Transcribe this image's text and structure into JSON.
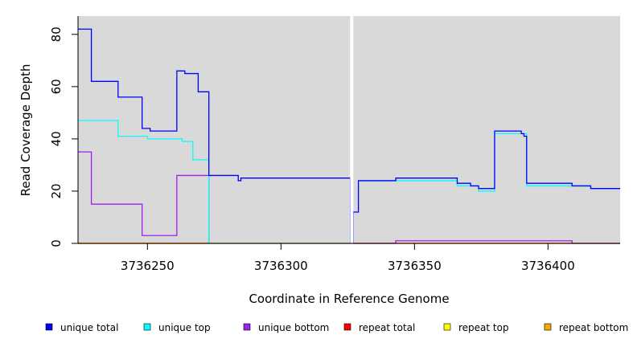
{
  "chart_data": {
    "type": "line",
    "step": true,
    "xlabel": "Coordinate in Reference Genome",
    "ylabel": "Read Coverage Depth",
    "xlim": [
      3736224,
      3736427
    ],
    "ylim": [
      0,
      87
    ],
    "x_ticks": [
      3736250,
      3736300,
      3736350,
      3736400
    ],
    "y_ticks": [
      0,
      20,
      40,
      60,
      80
    ],
    "background": "#d9d9d9",
    "separator_x": 3736326.5,
    "legend_position": "bottom",
    "series": [
      {
        "name": "unique total",
        "color": "#0000ff",
        "segments": [
          [
            [
              3736224,
              82
            ],
            [
              3736229,
              82
            ],
            [
              3736229,
              62
            ],
            [
              3736239,
              62
            ],
            [
              3736239,
              56
            ],
            [
              3736248,
              56
            ],
            [
              3736248,
              44
            ],
            [
              3736251,
              44
            ],
            [
              3736251,
              43
            ],
            [
              3736261,
              43
            ],
            [
              3736261,
              66
            ],
            [
              3736264,
              66
            ],
            [
              3736264,
              65
            ],
            [
              3736269,
              65
            ],
            [
              3736269,
              58
            ],
            [
              3736273,
              58
            ],
            [
              3736273,
              26
            ],
            [
              3736284,
              26
            ],
            [
              3736284,
              24
            ],
            [
              3736285,
              24
            ],
            [
              3736285,
              25
            ],
            [
              3736326,
              25
            ],
            [
              3736326,
              0
            ]
          ],
          [
            [
              3736327,
              0
            ],
            [
              3736327,
              12
            ],
            [
              3736329,
              12
            ],
            [
              3736329,
              24
            ],
            [
              3736343,
              24
            ],
            [
              3736343,
              25
            ],
            [
              3736366,
              25
            ],
            [
              3736366,
              23
            ],
            [
              3736371,
              23
            ],
            [
              3736371,
              22
            ],
            [
              3736374,
              22
            ],
            [
              3736374,
              21
            ],
            [
              3736380,
              21
            ],
            [
              3736380,
              43
            ],
            [
              3736390,
              43
            ],
            [
              3736390,
              42
            ],
            [
              3736391,
              42
            ],
            [
              3736391,
              41
            ],
            [
              3736392,
              41
            ],
            [
              3736392,
              23
            ],
            [
              3736409,
              23
            ],
            [
              3736409,
              22
            ],
            [
              3736416,
              22
            ],
            [
              3736416,
              21
            ],
            [
              3736427,
              21
            ]
          ]
        ]
      },
      {
        "name": "unique top",
        "color": "#00ffff",
        "segments": [
          [
            [
              3736224,
              47
            ],
            [
              3736239,
              47
            ],
            [
              3736239,
              41
            ],
            [
              3736250,
              41
            ],
            [
              3736250,
              40
            ],
            [
              3736263,
              40
            ],
            [
              3736263,
              39
            ],
            [
              3736267,
              39
            ],
            [
              3736267,
              32
            ],
            [
              3736273,
              32
            ],
            [
              3736273,
              0
            ],
            [
              3736326,
              0
            ]
          ],
          [
            [
              3736329,
              24
            ],
            [
              3736343,
              24
            ],
            [
              3736343,
              24
            ],
            [
              3736366,
              24
            ],
            [
              3736366,
              22
            ],
            [
              3736374,
              22
            ],
            [
              3736374,
              20
            ],
            [
              3736380,
              20
            ],
            [
              3736380,
              42
            ],
            [
              3736392,
              42
            ],
            [
              3736392,
              22
            ],
            [
              3736409,
              22
            ],
            [
              3736409,
              22
            ],
            [
              3736416,
              22
            ],
            [
              3736416,
              21
            ],
            [
              3736427,
              21
            ]
          ]
        ]
      },
      {
        "name": "unique bottom",
        "color": "#a020f0",
        "segments": [
          [
            [
              3736224,
              35
            ],
            [
              3736229,
              35
            ],
            [
              3736229,
              15
            ],
            [
              3736248,
              15
            ],
            [
              3736248,
              3
            ],
            [
              3736261,
              3
            ],
            [
              3736261,
              26
            ],
            [
              3736273,
              26
            ],
            [
              3736273,
              0
            ]
          ],
          [
            [
              3736327,
              0
            ],
            [
              3736343,
              0
            ],
            [
              3736343,
              1
            ],
            [
              3736409,
              1
            ],
            [
              3736409,
              0
            ],
            [
              3736427,
              0
            ]
          ]
        ]
      },
      {
        "name": "repeat total",
        "color": "#ff0000",
        "segments": [
          [
            [
              3736224,
              0
            ],
            [
              3736427,
              0
            ]
          ]
        ]
      },
      {
        "name": "repeat top",
        "color": "#ffff00",
        "segments": [
          [
            [
              3736224,
              0
            ],
            [
              3736427,
              0
            ]
          ]
        ]
      },
      {
        "name": "repeat bottom",
        "color": "#ffa500",
        "segments": [
          [
            [
              3736224,
              0
            ],
            [
              3736273,
              0
            ]
          ]
        ]
      }
    ]
  }
}
